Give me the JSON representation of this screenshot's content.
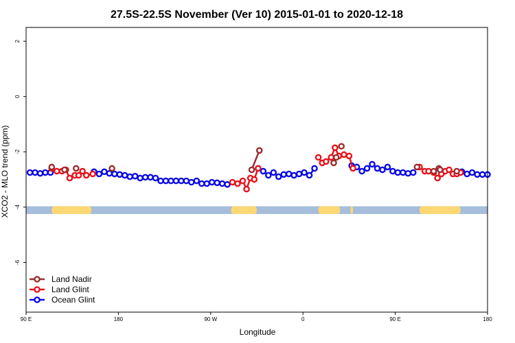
{
  "chart_data": {
    "type": "line",
    "title": "27.5S-22.5S November (Ver 10)   2015-01-01 to 2020-12-18",
    "xlabel": "Longitude",
    "ylabel": "XCO2 - MLO trend (ppm)",
    "xlim": [
      0,
      360
    ],
    "ylim": [
      -7.8,
      2.5
    ],
    "xticks": [
      {
        "value": 0,
        "label": "90 E"
      },
      {
        "value": 72,
        "label": "180"
      },
      {
        "value": 144,
        "label": "90 W"
      },
      {
        "value": 216,
        "label": "0"
      },
      {
        "value": 288,
        "label": "90 E"
      },
      {
        "value": 360,
        "label": "180"
      }
    ],
    "yticks": [
      {
        "value": 2,
        "label": "2"
      },
      {
        "value": 0,
        "label": "0"
      },
      {
        "value": -2,
        "label": "-2"
      },
      {
        "value": -4,
        "label": "-4"
      },
      {
        "value": -6,
        "label": "-6"
      }
    ],
    "legend_position": "bottom-left",
    "surface_band": {
      "y_range": [
        -4.25,
        -3.97
      ],
      "ocean_color": "#a6bddb",
      "land_color": "#fcd874",
      "land_segments": [
        [
          20,
          51
        ],
        [
          160,
          180
        ],
        [
          228,
          245
        ],
        [
          253,
          255
        ],
        [
          307,
          339
        ]
      ]
    },
    "series": [
      {
        "name": "Land Nadir",
        "color": "#9b2c2c",
        "x": [
          20,
          30,
          39,
          67,
          176,
          182,
          305,
          318,
          322,
          336,
          323,
          242,
          240,
          246
        ],
        "y": [
          -2.55,
          -2.65,
          -2.6,
          -2.6,
          -2.65,
          -1.95,
          -2.55,
          -2.7,
          -2.6,
          -2.7,
          -2.65,
          -2.2,
          -2.4,
          -1.8
        ]
      },
      {
        "name": "Land Glint",
        "color": "#e8131b",
        "x": [
          20,
          24,
          28,
          31,
          34,
          38,
          41,
          44,
          47,
          52,
          161,
          165,
          169,
          172,
          175,
          178,
          181,
          228,
          231,
          234,
          238,
          241,
          244,
          248,
          252,
          255,
          307,
          311,
          314,
          318,
          321,
          324,
          327,
          330,
          333,
          336,
          339
        ],
        "y": [
          -2.6,
          -2.7,
          -2.7,
          -2.65,
          -2.95,
          -2.85,
          -2.85,
          -2.7,
          -2.85,
          -2.8,
          -3.1,
          -3.15,
          -3.05,
          -3.35,
          -2.95,
          -3.0,
          -2.6,
          -2.2,
          -2.4,
          -2.35,
          -2.2,
          -1.85,
          -2.15,
          -2.1,
          -2.15,
          -2.6,
          -2.55,
          -2.7,
          -2.7,
          -2.75,
          -2.95,
          -2.8,
          -2.7,
          -2.65,
          -2.8,
          -2.8,
          -2.75
        ],
        "segments": [
          [
            0,
            10
          ],
          [
            10,
            17
          ],
          [
            17,
            26
          ],
          [
            26,
            37
          ]
        ]
      },
      {
        "name": "Ocean Glint",
        "color": "#0a0ae6",
        "x": [
          3,
          7,
          11,
          15,
          19,
          53,
          57,
          61,
          65,
          69,
          73,
          77,
          81,
          85,
          89,
          93,
          97,
          101,
          105,
          109,
          113,
          117,
          121,
          125,
          129,
          133,
          137,
          141,
          145,
          149,
          153,
          157,
          181,
          185,
          189,
          193,
          197,
          201,
          205,
          209,
          213,
          217,
          221,
          225,
          254,
          258,
          262,
          266,
          270,
          274,
          278,
          282,
          286,
          290,
          294,
          298,
          302,
          340,
          344,
          348,
          352,
          356,
          360
        ],
        "y": [
          -2.75,
          -2.75,
          -2.78,
          -2.75,
          -2.75,
          -2.72,
          -2.8,
          -2.72,
          -2.78,
          -2.8,
          -2.82,
          -2.85,
          -2.9,
          -2.88,
          -2.95,
          -2.92,
          -2.92,
          -2.95,
          -3.05,
          -3.05,
          -3.05,
          -3.05,
          -3.05,
          -3.05,
          -3.1,
          -3.05,
          -3.15,
          -3.15,
          -3.1,
          -3.12,
          -3.15,
          -3.18,
          -2.6,
          -2.7,
          -2.85,
          -2.75,
          -2.9,
          -2.82,
          -2.8,
          -2.85,
          -2.8,
          -2.75,
          -2.85,
          -2.6,
          -2.5,
          -2.55,
          -2.7,
          -2.6,
          -2.45,
          -2.6,
          -2.65,
          -2.55,
          -2.7,
          -2.75,
          -2.75,
          -2.78,
          -2.75,
          -2.72,
          -2.8,
          -2.75,
          -2.82,
          -2.82,
          -2.82
        ],
        "segments": [
          [
            0,
            5
          ],
          [
            5,
            32
          ],
          [
            32,
            44
          ],
          [
            44,
            57
          ],
          [
            57,
            63
          ]
        ]
      }
    ]
  }
}
